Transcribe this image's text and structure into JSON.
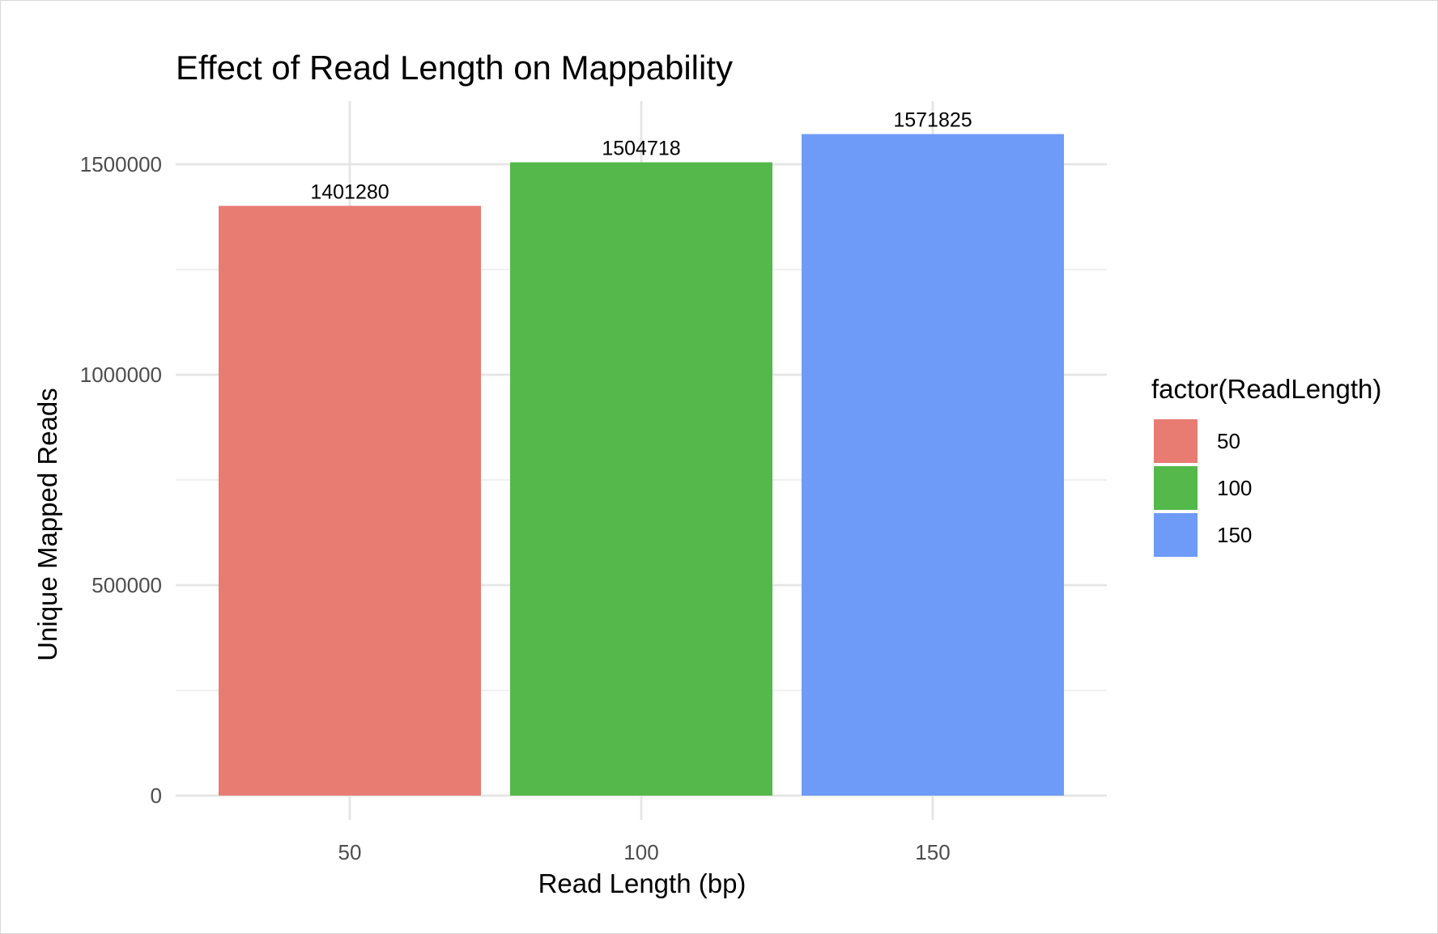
{
  "chart_data": {
    "type": "bar",
    "title": "Effect of Read Length on Mappability",
    "xlabel": "Read Length (bp)",
    "ylabel": "Unique Mapped Reads",
    "categories": [
      "50",
      "100",
      "150"
    ],
    "values": [
      1401280,
      1504718,
      1571825
    ],
    "data_labels": [
      "1401280",
      "1504718",
      "1571825"
    ],
    "colors": [
      "#E87C73",
      "#54B84B",
      "#6E9BF7"
    ],
    "ylim": [
      0,
      1650000
    ],
    "y_ticks": [
      0,
      500000,
      1000000,
      1500000
    ],
    "y_tick_labels": [
      "0",
      "500000",
      "1000000",
      "1500000"
    ],
    "grid": true,
    "legend": {
      "title": "factor(ReadLength)",
      "placement": "right",
      "entries": [
        "50",
        "100",
        "150"
      ]
    }
  }
}
